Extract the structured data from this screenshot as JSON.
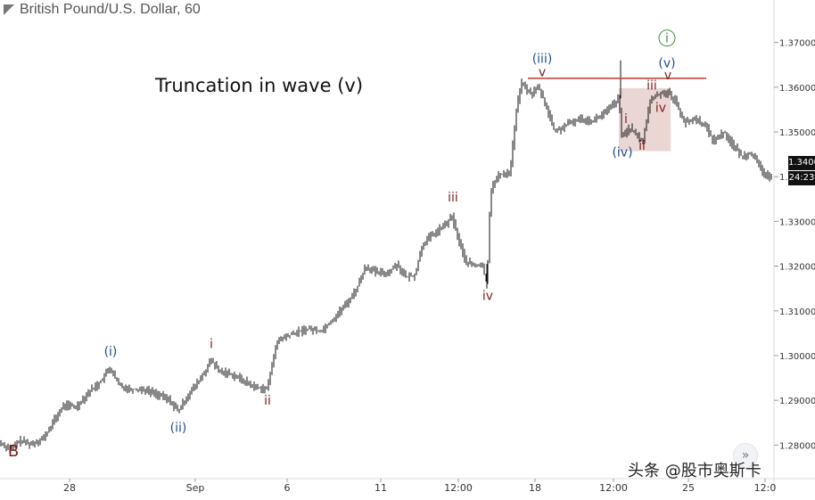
{
  "header": {
    "symbol": "British Pound/U.S. Dollar, 60"
  },
  "annotation_title": "Truncation in wave (v)",
  "price_axis": {
    "last_price": "1.34002",
    "countdown": "24:23"
  },
  "watermark": "头条 @股市奥斯卡",
  "colors": {
    "candles": "#111111",
    "wave_blue": "#1f4e8c",
    "wave_maroon": "#7a1f1f",
    "wave_green": "#3c8c3c",
    "resistance": "#c0392b",
    "box": "#e6d0cc"
  },
  "chart_data": {
    "type": "line",
    "title": "Truncation in wave (v)",
    "xlabel": "",
    "ylabel": "",
    "ylim": [
      1.2725,
      1.3795
    ],
    "y_ticks": [
      "1.28000",
      "1.29000",
      "1.30000",
      "1.31000",
      "1.32000",
      "1.33000",
      "1.34000",
      "1.35000",
      "1.36000",
      "1.37000"
    ],
    "x_ticks": [
      "28",
      "Sep",
      "6",
      "11",
      "12:00",
      "18",
      "12:00",
      "25",
      "12:0"
    ],
    "x_tick_positions": [
      78,
      219,
      322,
      427,
      514,
      600,
      688,
      772,
      858
    ],
    "x_range": [
      0,
      868
    ],
    "series": [
      {
        "points": [
          [
            0,
            1.2805
          ],
          [
            12,
            1.279
          ],
          [
            22,
            1.281
          ],
          [
            35,
            1.2802
          ],
          [
            50,
            1.2818
          ],
          [
            62,
            1.286
          ],
          [
            72,
            1.289
          ],
          [
            85,
            1.2885
          ],
          [
            100,
            1.292
          ],
          [
            112,
            1.294
          ],
          [
            123,
            1.2972
          ],
          [
            133,
            1.2935
          ],
          [
            145,
            1.2925
          ],
          [
            160,
            1.2925
          ],
          [
            175,
            1.2915
          ],
          [
            190,
            1.29
          ],
          [
            200,
            1.2875
          ],
          [
            210,
            1.291
          ],
          [
            220,
            1.2935
          ],
          [
            230,
            1.2965
          ],
          [
            237,
            1.299
          ],
          [
            245,
            1.2965
          ],
          [
            258,
            1.296
          ],
          [
            272,
            1.2945
          ],
          [
            285,
            1.293
          ],
          [
            300,
            1.2925
          ],
          [
            305,
            1.2985
          ],
          [
            312,
            1.3035
          ],
          [
            330,
            1.305
          ],
          [
            345,
            1.306
          ],
          [
            360,
            1.3055
          ],
          [
            375,
            1.3085
          ],
          [
            390,
            1.312
          ],
          [
            400,
            1.315
          ],
          [
            410,
            1.32
          ],
          [
            422,
            1.3185
          ],
          [
            435,
            1.3185
          ],
          [
            445,
            1.3205
          ],
          [
            455,
            1.3175
          ],
          [
            465,
            1.318
          ],
          [
            474,
            1.325
          ],
          [
            485,
            1.327
          ],
          [
            498,
            1.329
          ],
          [
            507,
            1.331
          ],
          [
            514,
            1.326
          ],
          [
            522,
            1.321
          ],
          [
            533,
            1.32
          ],
          [
            540,
            1.3205
          ],
          [
            546,
            1.316
          ],
          [
            550,
            1.337
          ],
          [
            560,
            1.3405
          ],
          [
            572,
            1.341
          ],
          [
            578,
            1.353
          ],
          [
            584,
            1.361
          ],
          [
            595,
            1.3585
          ],
          [
            604,
            1.36
          ],
          [
            612,
            1.356
          ],
          [
            622,
            1.35
          ],
          [
            635,
            1.3515
          ],
          [
            650,
            1.353
          ],
          [
            665,
            1.3525
          ],
          [
            680,
            1.3545
          ],
          [
            694,
            1.3575
          ],
          [
            697,
            1.349
          ],
          [
            706,
            1.351
          ],
          [
            714,
            1.349
          ],
          [
            721,
            1.348
          ],
          [
            729,
            1.357
          ],
          [
            738,
            1.3585
          ],
          [
            748,
            1.359
          ],
          [
            757,
            1.357
          ],
          [
            768,
            1.352
          ],
          [
            781,
            1.353
          ],
          [
            792,
            1.351
          ],
          [
            800,
            1.348
          ],
          [
            812,
            1.35
          ],
          [
            822,
            1.347
          ],
          [
            832,
            1.3445
          ],
          [
            842,
            1.3455
          ],
          [
            852,
            1.342
          ],
          [
            860,
            1.34
          ],
          [
            868,
            1.339
          ]
        ]
      }
    ],
    "wave_labels": [
      {
        "text": "B",
        "x": 15,
        "y": 1.2775,
        "color": "maroon",
        "size": 18
      },
      {
        "text": "(i)",
        "x": 124,
        "y": 1.3,
        "color": "blue"
      },
      {
        "text": "(ii)",
        "x": 200,
        "y": 1.283,
        "color": "blue"
      },
      {
        "text": "i",
        "x": 237,
        "y": 1.3017,
        "color": "maroon"
      },
      {
        "text": "ii",
        "x": 300,
        "y": 1.289,
        "color": "maroon"
      },
      {
        "text": "iii",
        "x": 508,
        "y": 1.3345,
        "color": "maroon"
      },
      {
        "text": "iv",
        "x": 547,
        "y": 1.3125,
        "color": "maroon"
      },
      {
        "text": "(iii)",
        "x": 608,
        "y": 1.3655,
        "color": "blue"
      },
      {
        "text": "v",
        "x": 608,
        "y": 1.3625,
        "color": "maroon"
      },
      {
        "text": "(iv)",
        "x": 698,
        "y": 1.3445,
        "color": "blue"
      },
      {
        "text": "i",
        "x": 702,
        "y": 1.352,
        "color": "maroon"
      },
      {
        "text": "ii",
        "x": 720,
        "y": 1.346,
        "color": "maroon"
      },
      {
        "text": "iii",
        "x": 731,
        "y": 1.3595,
        "color": "maroon"
      },
      {
        "text": "iv",
        "x": 741,
        "y": 1.3545,
        "color": "maroon"
      },
      {
        "text": "(v)",
        "x": 748,
        "y": 1.3645,
        "color": "blue"
      },
      {
        "text": "v",
        "x": 749,
        "y": 1.3618,
        "color": "maroon"
      },
      {
        "text": "i",
        "x": 748,
        "y": 1.37,
        "color": "green",
        "circled": true
      }
    ],
    "resistance_level": 1.362,
    "resistance_x": [
      592,
      792
    ],
    "range_box": {
      "x": [
        694,
        752
      ],
      "y": [
        1.3457,
        1.3598
      ]
    }
  }
}
